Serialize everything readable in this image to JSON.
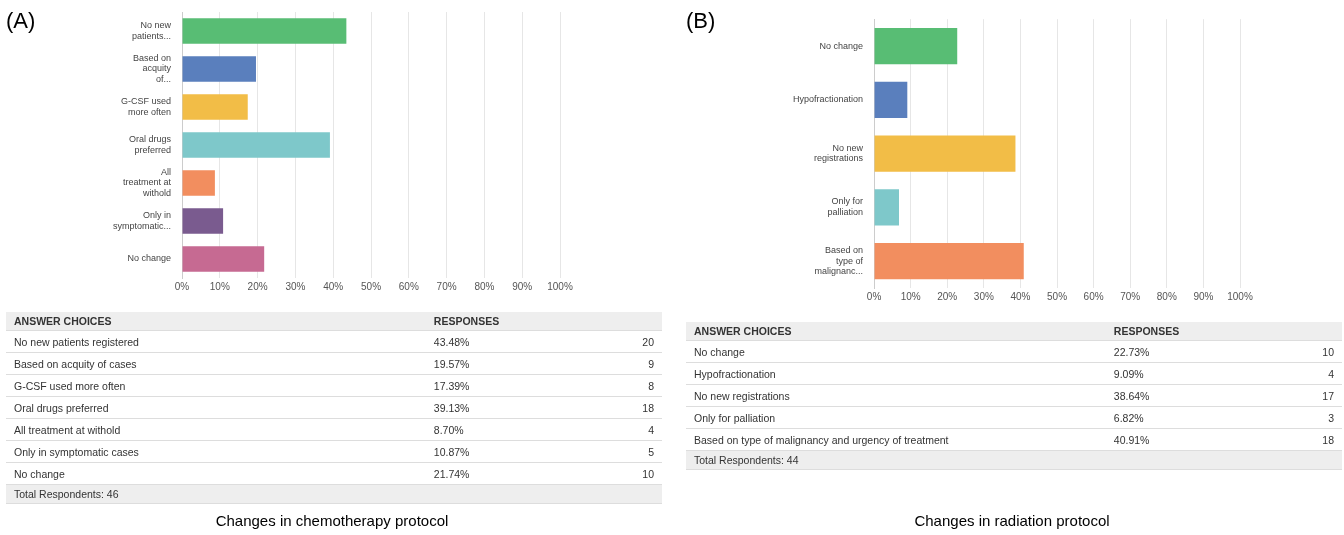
{
  "chart_data": [
    {
      "type": "bar",
      "title": "(A)",
      "orientation": "horizontal",
      "categories": [
        "No new patients...",
        "Based on acquity of...",
        "G-CSF used more often",
        "Oral drugs preferred",
        "All treatment at withold",
        "Only in symptomatic...",
        "No change"
      ],
      "values": [
        43.48,
        19.57,
        17.39,
        39.13,
        8.7,
        10.87,
        21.74
      ],
      "colors": [
        "#58bd74",
        "#5a7fbd",
        "#f2bd47",
        "#7ec8ca",
        "#f28e5f",
        "#7a5b8f",
        "#c66a92"
      ],
      "xlim": [
        0,
        100
      ],
      "xticks": [
        {
          "value": 0,
          "label": "0%"
        },
        {
          "value": 10,
          "label": "10%"
        },
        {
          "value": 20,
          "label": "20%"
        },
        {
          "value": 30,
          "label": "30%"
        },
        {
          "value": 40,
          "label": "40%"
        },
        {
          "value": 50,
          "label": "50%"
        },
        {
          "value": 60,
          "label": "60%"
        },
        {
          "value": 70,
          "label": "70%"
        },
        {
          "value": 80,
          "label": "80%"
        },
        {
          "value": 90,
          "label": "90%"
        },
        {
          "value": 100,
          "label": "100%"
        }
      ],
      "grid": "x",
      "legend": false,
      "annotations": [
        "ANSWER CHOICES",
        "RESPONSES",
        "No new patients registered",
        "Based on acquity of cases",
        "G-CSF used more often",
        "Oral drugs preferred",
        "All treatment at withold",
        "Only in symptomatic cases",
        "No change",
        "43.48%",
        "19.57%",
        "17.39%",
        "39.13%",
        "8.70%",
        "10.87%",
        "21.74%",
        "20",
        "9",
        "8",
        "18",
        "4",
        "5",
        "10",
        "Total Respondents: 46",
        "Changes in chemotherapy protocol"
      ]
    },
    {
      "type": "bar",
      "title": "(B)",
      "orientation": "horizontal",
      "categories": [
        "No change",
        "Hypofractionation",
        "No new registrations",
        "Only for palliation",
        "Based on type of malignanc..."
      ],
      "values": [
        22.73,
        9.09,
        38.64,
        6.82,
        40.91
      ],
      "colors": [
        "#58bd74",
        "#5a7fbd",
        "#f2bd47",
        "#7ec8ca",
        "#f28e5f"
      ],
      "xlim": [
        0,
        100
      ],
      "xticks": [
        {
          "value": 0,
          "label": "0%"
        },
        {
          "value": 10,
          "label": "10%"
        },
        {
          "value": 20,
          "label": "20%"
        },
        {
          "value": 30,
          "label": "30%"
        },
        {
          "value": 40,
          "label": "40%"
        },
        {
          "value": 50,
          "label": "50%"
        },
        {
          "value": 60,
          "label": "60%"
        },
        {
          "value": 70,
          "label": "70%"
        },
        {
          "value": 80,
          "label": "80%"
        },
        {
          "value": 90,
          "label": "90%"
        },
        {
          "value": 100,
          "label": "100%"
        }
      ],
      "grid": "x",
      "legend": false,
      "annotations": [
        "ANSWER CHOICES",
        "RESPONSES",
        "No change",
        "Hypofractionation",
        "No new registrations",
        "Only for palliation",
        "Based on type of malignancy and urgency of treatment",
        "22.73%",
        "9.09%",
        "38.64%",
        "6.82%",
        "40.91%",
        "10",
        "4",
        "17",
        "3",
        "18",
        "Total Respondents: 44",
        "Changes in radiation protocol"
      ]
    }
  ]
}
